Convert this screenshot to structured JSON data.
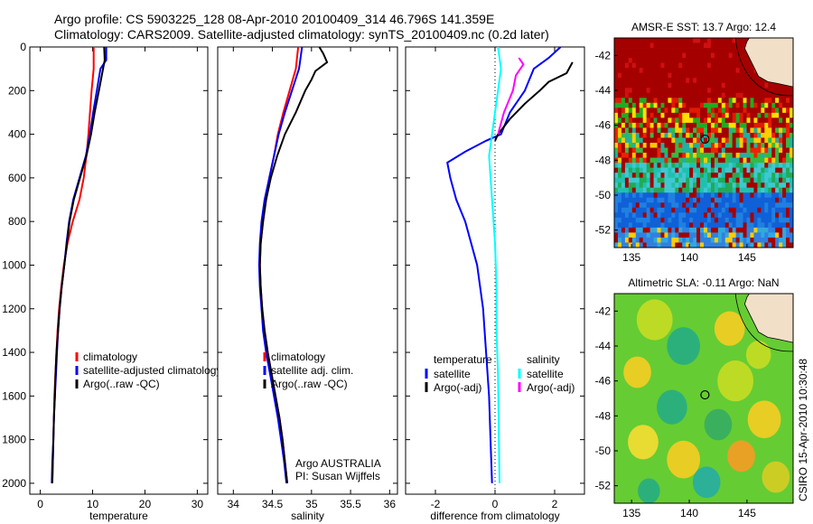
{
  "header": {
    "line1": "Argo profile: CS 5903225_128 08-Apr-2010 20100409_314 46.796S 141.359E",
    "line2": "Climatology: CARS2009. Satellite-adjusted climatology: synTS_20100409.nc (0.2d later)"
  },
  "colors": {
    "climatology": "#ff0000",
    "satellite": "#0000ff",
    "argo": "#000000",
    "salinity_satellite": "#00ffff",
    "salinity_argo": "#ff00ff"
  },
  "side_label": "CSIRO 15-Apr-2010 10:30:48",
  "credit": {
    "line1": "Argo AUSTRALIA",
    "line2": "PI: Susan Wijffels"
  },
  "chart_data": [
    {
      "id": "temperature",
      "type": "line",
      "xlabel": "temperature",
      "xlim": [
        -2,
        32
      ],
      "ylim": [
        0,
        2050
      ],
      "y_reversed": true,
      "xticks": [
        0,
        10,
        20,
        30
      ],
      "yticks": [
        0,
        200,
        400,
        600,
        800,
        1000,
        1200,
        1400,
        1600,
        1800,
        2000
      ],
      "legend": [
        "climatology",
        "satellite-adjusted climatology",
        "Argo(..raw -QC)"
      ],
      "series": [
        {
          "name": "climatology",
          "color": "#ff0000",
          "points": [
            [
              10.2,
              0
            ],
            [
              10.2,
              100
            ],
            [
              9.8,
              200
            ],
            [
              9.5,
              300
            ],
            [
              9.2,
              400
            ],
            [
              8.8,
              500
            ],
            [
              8.3,
              600
            ],
            [
              7.5,
              700
            ],
            [
              6.2,
              800
            ],
            [
              5.2,
              900
            ],
            [
              4.5,
              1000
            ],
            [
              4.0,
              1100
            ],
            [
              3.6,
              1200
            ],
            [
              3.3,
              1300
            ],
            [
              3.1,
              1400
            ],
            [
              2.9,
              1500
            ],
            [
              2.7,
              1600
            ],
            [
              2.6,
              1700
            ],
            [
              2.5,
              1800
            ],
            [
              2.4,
              1900
            ],
            [
              2.3,
              2000
            ]
          ]
        },
        {
          "name": "satellite-adjusted climatology",
          "color": "#0000ff",
          "points": [
            [
              12.6,
              0
            ],
            [
              12.6,
              60
            ],
            [
              11.5,
              100
            ],
            [
              10.8,
              200
            ],
            [
              10.1,
              300
            ],
            [
              9.5,
              400
            ],
            [
              8.7,
              500
            ],
            [
              7.5,
              600
            ],
            [
              6.3,
              700
            ],
            [
              5.5,
              800
            ],
            [
              5.0,
              900
            ],
            [
              4.6,
              1000
            ],
            [
              4.1,
              1100
            ],
            [
              3.7,
              1200
            ],
            [
              3.4,
              1300
            ],
            [
              3.2,
              1400
            ],
            [
              3.0,
              1500
            ],
            [
              2.8,
              1600
            ],
            [
              2.6,
              1700
            ],
            [
              2.5,
              1800
            ],
            [
              2.3,
              1900
            ],
            [
              2.2,
              2000
            ]
          ]
        },
        {
          "name": "Argo(..raw -QC)",
          "color": "#000000",
          "points": [
            [
              12.2,
              0
            ],
            [
              12.3,
              60
            ],
            [
              12.0,
              100
            ],
            [
              11.2,
              200
            ],
            [
              10.4,
              300
            ],
            [
              9.7,
              400
            ],
            [
              8.8,
              500
            ],
            [
              7.6,
              600
            ],
            [
              6.4,
              700
            ],
            [
              5.6,
              800
            ],
            [
              5.1,
              900
            ],
            [
              4.6,
              1000
            ],
            [
              4.1,
              1100
            ],
            [
              3.7,
              1200
            ],
            [
              3.4,
              1300
            ],
            [
              3.1,
              1400
            ],
            [
              2.9,
              1500
            ],
            [
              2.8,
              1600
            ],
            [
              2.6,
              1700
            ],
            [
              2.5,
              1800
            ],
            [
              2.4,
              1900
            ],
            [
              2.3,
              2000
            ]
          ]
        }
      ]
    },
    {
      "id": "salinity",
      "type": "line",
      "xlabel": "salinity",
      "xlim": [
        33.8,
        36.1
      ],
      "ylim": [
        0,
        2050
      ],
      "y_reversed": true,
      "xticks": [
        34,
        34.5,
        35,
        35.5,
        36
      ],
      "legend": [
        "climatology",
        "satellite adj. clim.",
        "Argo(..raw -QC)"
      ],
      "series": [
        {
          "name": "climatology",
          "color": "#ff0000",
          "points": [
            [
              34.83,
              0
            ],
            [
              34.8,
              100
            ],
            [
              34.72,
              200
            ],
            [
              34.64,
              300
            ],
            [
              34.57,
              400
            ],
            [
              34.52,
              500
            ],
            [
              34.46,
              600
            ],
            [
              34.42,
              700
            ],
            [
              34.38,
              800
            ],
            [
              34.35,
              900
            ],
            [
              34.34,
              1000
            ],
            [
              34.35,
              1100
            ],
            [
              34.37,
              1200
            ],
            [
              34.4,
              1300
            ],
            [
              34.44,
              1400
            ],
            [
              34.49,
              1500
            ],
            [
              34.54,
              1600
            ],
            [
              34.59,
              1700
            ],
            [
              34.63,
              1800
            ],
            [
              34.66,
              1900
            ],
            [
              34.69,
              2000
            ]
          ]
        },
        {
          "name": "satellite adj. clim.",
          "color": "#0000ff",
          "points": [
            [
              34.88,
              0
            ],
            [
              34.86,
              50
            ],
            [
              34.84,
              100
            ],
            [
              34.75,
              200
            ],
            [
              34.66,
              300
            ],
            [
              34.58,
              400
            ],
            [
              34.52,
              500
            ],
            [
              34.46,
              600
            ],
            [
              34.4,
              700
            ],
            [
              34.36,
              800
            ],
            [
              34.34,
              900
            ],
            [
              34.33,
              1000
            ],
            [
              34.34,
              1100
            ],
            [
              34.36,
              1200
            ],
            [
              34.38,
              1300
            ],
            [
              34.42,
              1400
            ],
            [
              34.47,
              1500
            ],
            [
              34.52,
              1600
            ],
            [
              34.57,
              1700
            ],
            [
              34.61,
              1800
            ],
            [
              34.65,
              1900
            ],
            [
              34.68,
              2000
            ]
          ]
        },
        {
          "name": "Argo(..raw -QC)",
          "color": "#000000",
          "points": [
            [
              35.1,
              0
            ],
            [
              35.15,
              30
            ],
            [
              35.2,
              70
            ],
            [
              35.05,
              110
            ],
            [
              35.0,
              150
            ],
            [
              34.92,
              200
            ],
            [
              34.8,
              300
            ],
            [
              34.66,
              400
            ],
            [
              34.56,
              500
            ],
            [
              34.48,
              600
            ],
            [
              34.42,
              700
            ],
            [
              34.38,
              800
            ],
            [
              34.35,
              900
            ],
            [
              34.34,
              1000
            ],
            [
              34.35,
              1100
            ],
            [
              34.37,
              1200
            ],
            [
              34.4,
              1300
            ],
            [
              34.44,
              1400
            ],
            [
              34.49,
              1500
            ],
            [
              34.54,
              1600
            ],
            [
              34.59,
              1700
            ],
            [
              34.63,
              1800
            ],
            [
              34.66,
              1900
            ],
            [
              34.69,
              2000
            ]
          ]
        }
      ]
    },
    {
      "id": "difference",
      "type": "line",
      "xlabel": "difference from climatology",
      "xlim": [
        -3,
        3
      ],
      "ylim": [
        0,
        2050
      ],
      "y_reversed": true,
      "xticks": [
        -2,
        0,
        2
      ],
      "zero_line": true,
      "legend_headers": [
        "temperature",
        "salinity"
      ],
      "legend": [
        "satellite",
        "Argo(-adj)",
        "satellite",
        "Argo(-adj)"
      ],
      "series": [
        {
          "name": "satellite",
          "group": "temperature",
          "color": "#0000ff",
          "points": [
            [
              2.2,
              0
            ],
            [
              1.8,
              50
            ],
            [
              1.3,
              100
            ],
            [
              1.0,
              200
            ],
            [
              0.5,
              300
            ],
            [
              0.2,
              400
            ],
            [
              -0.3,
              430
            ],
            [
              -1.0,
              480
            ],
            [
              -1.6,
              530
            ],
            [
              -1.5,
              600
            ],
            [
              -1.3,
              700
            ],
            [
              -1.0,
              800
            ],
            [
              -0.8,
              900
            ],
            [
              -0.6,
              1000
            ],
            [
              -0.5,
              1100
            ],
            [
              -0.4,
              1200
            ],
            [
              -0.3,
              1400
            ],
            [
              -0.2,
              1600
            ],
            [
              -0.15,
              1800
            ],
            [
              -0.1,
              2000
            ]
          ]
        },
        {
          "name": "Argo(-adj)",
          "group": "temperature",
          "color": "#000000",
          "points": [
            [
              2.6,
              70
            ],
            [
              2.4,
              120
            ],
            [
              1.8,
              160
            ],
            [
              1.5,
              200
            ],
            [
              1.0,
              260
            ],
            [
              0.5,
              330
            ],
            [
              0.1,
              400
            ],
            [
              0.0,
              430
            ]
          ]
        },
        {
          "name": "satellite",
          "group": "salinity",
          "color": "#00ffff",
          "points": [
            [
              0.1,
              0
            ],
            [
              0.2,
              100
            ],
            [
              0.1,
              200
            ],
            [
              0.0,
              300
            ],
            [
              -0.2,
              500
            ],
            [
              -0.1,
              700
            ],
            [
              0.0,
              900
            ],
            [
              0.05,
              1100
            ],
            [
              0.05,
              1300
            ],
            [
              0.1,
              1500
            ],
            [
              0.12,
              1700
            ],
            [
              0.14,
              1900
            ],
            [
              0.15,
              2000
            ]
          ]
        },
        {
          "name": "Argo(-adj)",
          "group": "salinity",
          "color": "#ff00ff",
          "points": [
            [
              0.8,
              50
            ],
            [
              0.95,
              80
            ],
            [
              0.7,
              130
            ],
            [
              0.6,
              200
            ],
            [
              0.3,
              300
            ],
            [
              0.1,
              400
            ]
          ]
        }
      ]
    },
    {
      "id": "sst_map",
      "type": "heatmap",
      "title": "AMSR-E SST: 13.7 Argo: 12.4",
      "xlim": [
        133.5,
        149
      ],
      "ylim": [
        -53,
        -41
      ],
      "xticks": [
        135,
        140,
        145
      ],
      "yticks": [
        -42,
        -44,
        -46,
        -48,
        -50,
        -52
      ],
      "marker": [
        141.359,
        -46.796
      ]
    },
    {
      "id": "sla_map",
      "type": "heatmap",
      "title": "Altimetric SLA: -0.11 Argo: NaN",
      "xlim": [
        133.5,
        149
      ],
      "ylim": [
        -53,
        -41
      ],
      "xticks": [
        135,
        140,
        145
      ],
      "yticks": [
        -42,
        -44,
        -46,
        -48,
        -50,
        -52
      ],
      "marker": [
        141.359,
        -46.796
      ]
    }
  ]
}
